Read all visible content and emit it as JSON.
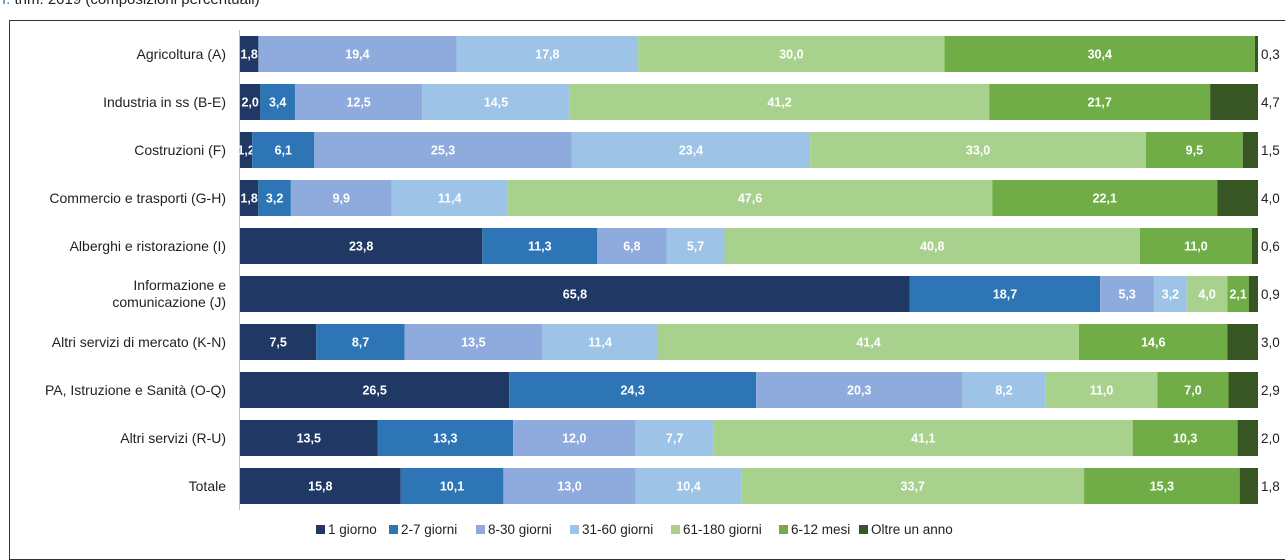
{
  "header": {
    "roman": "I.",
    "text": "trim. 2019 (composizioni percentuali)"
  },
  "chart_data": {
    "type": "bar",
    "orientation": "horizontal",
    "stacked": true,
    "categories": [
      "Agricoltura (A)",
      "Industria in ss (B-E)",
      "Costruzioni (F)",
      "Commercio e trasporti (G-H)",
      "Alberghi e ristorazione (I)",
      "Informazione e comunicazione (J)",
      "Altri servizi di mercato (K-N)",
      "PA, Istruzione e Sanità (O-Q)",
      "Altri servizi (R-U)",
      "Totale"
    ],
    "series": [
      {
        "name": "1 giorno",
        "color": "#1f3864",
        "values": [
          1.8,
          2.0,
          1.2,
          1.8,
          23.8,
          65.8,
          7.5,
          26.5,
          13.5,
          15.8
        ]
      },
      {
        "name": "2-7 giorni",
        "color": "#2e75b6",
        "values": [
          0,
          3.4,
          6.1,
          3.2,
          11.3,
          18.7,
          8.7,
          24.3,
          13.3,
          10.1
        ]
      },
      {
        "name": "8-30 giorni",
        "color": "#8faadc",
        "values": [
          19.4,
          12.5,
          25.3,
          9.9,
          6.8,
          5.3,
          13.5,
          20.3,
          12.0,
          13.0
        ]
      },
      {
        "name": "31-60 giorni",
        "color": "#9dc3e6",
        "values": [
          17.8,
          14.5,
          23.4,
          11.4,
          5.7,
          3.2,
          11.4,
          8.2,
          7.7,
          10.4
        ]
      },
      {
        "name": "61-180 giorni",
        "color": "#a9d18e",
        "values": [
          30.0,
          41.2,
          33.0,
          47.6,
          40.8,
          4.0,
          41.4,
          11.0,
          41.1,
          33.7
        ]
      },
      {
        "name": "6-12 mesi",
        "color": "#70ad47",
        "values": [
          30.4,
          21.7,
          9.5,
          22.1,
          11.0,
          2.1,
          14.6,
          7.0,
          10.3,
          15.3
        ]
      },
      {
        "name": "Oltre un anno",
        "color": "#375623",
        "values": [
          0.3,
          4.7,
          1.5,
          4.0,
          0.6,
          0.9,
          3.0,
          2.9,
          2.0,
          1.8
        ]
      }
    ],
    "labels_shown": [
      [
        "1,8",
        "",
        "19,4",
        "17,8",
        "30,0",
        "30,4",
        ""
      ],
      [
        "2,0",
        "3,4",
        "12,5",
        "14,5",
        "41,2",
        "21,7",
        ""
      ],
      [
        "1,2",
        "6,1",
        "25,3",
        "23,4",
        "33,0",
        "9,5",
        ""
      ],
      [
        "1,8",
        "3,2",
        "9,9",
        "11,4",
        "47,6",
        "22,1",
        ""
      ],
      [
        "23,8",
        "11,3",
        "6,8",
        "5,7",
        "40,8",
        "11,0",
        ""
      ],
      [
        "65,8",
        "18,7",
        "5,3",
        "3,2",
        "4,0",
        "2,1",
        ""
      ],
      [
        "7,5",
        "8,7",
        "13,5",
        "11,4",
        "41,4",
        "14,6",
        ""
      ],
      [
        "26,5",
        "24,3",
        "20,3",
        "8,2",
        "11,0",
        "7,0",
        ""
      ],
      [
        "13,5",
        "13,3",
        "12,0",
        "7,7",
        "41,1",
        "10,3",
        ""
      ],
      [
        "15,8",
        "10,1",
        "13,0",
        "10,4",
        "33,7",
        "15,3",
        ""
      ]
    ],
    "last_labels": [
      "0,3",
      "4,7",
      "1,5",
      "4,0",
      "0,6",
      "0,9",
      "3,0",
      "2,9",
      "2,0",
      "1,8"
    ],
    "xlim": [
      0,
      100
    ],
    "grid": false,
    "legend_position": "bottom"
  }
}
